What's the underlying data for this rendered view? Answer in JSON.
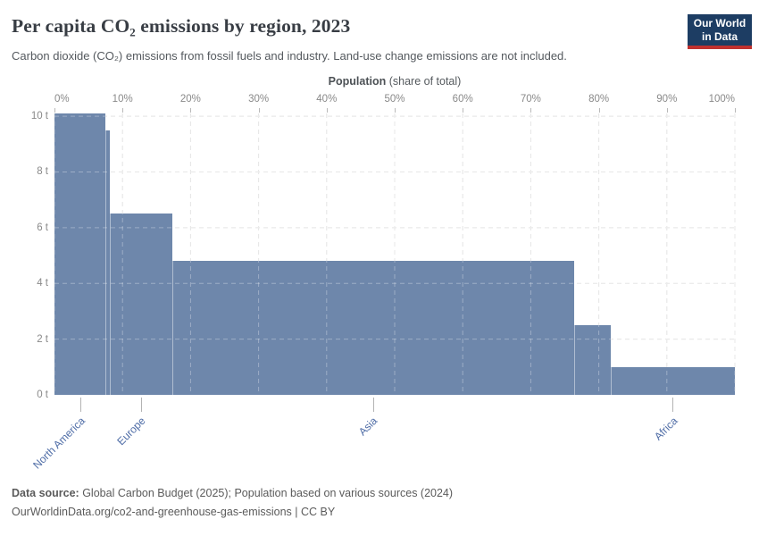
{
  "header": {
    "title": "Per capita CO₂ emissions by region, 2023",
    "subtitle": "Carbon dioxide (CO₂) emissions from fossil fuels and industry. Land-use change emissions are not included.",
    "logo": {
      "line1": "Our World",
      "line2": "in Data"
    }
  },
  "chart_data": {
    "type": "bar",
    "variant": "marimekko",
    "title": "Per capita CO₂ emissions by region, 2023",
    "x_axis": {
      "title_bold": "Population",
      "title_rest": " (share of total)",
      "ticks": [
        "0%",
        "10%",
        "20%",
        "30%",
        "40%",
        "50%",
        "60%",
        "70%",
        "80%",
        "90%",
        "100%"
      ],
      "range_pct": [
        0,
        100
      ],
      "position": "top"
    },
    "y_axis": {
      "ticks": [
        "0 t",
        "2 t",
        "4 t",
        "6 t",
        "8 t",
        "10 t"
      ],
      "tick_values": [
        0,
        2,
        4,
        6,
        8,
        10
      ],
      "unit": "tonnes CO₂ per person",
      "max": 10.1
    },
    "bars": [
      {
        "label": "North America",
        "per_capita_t": 10.1,
        "population_share_pct": 7.5
      },
      {
        "label": "",
        "per_capita_t": 9.5,
        "population_share_pct": 0.6
      },
      {
        "label": "Europe",
        "per_capita_t": 6.5,
        "population_share_pct": 9.2
      },
      {
        "label": "Asia",
        "per_capita_t": 4.8,
        "population_share_pct": 59.05
      },
      {
        "label": "",
        "per_capita_t": 2.5,
        "population_share_pct": 5.35
      },
      {
        "label": "Africa",
        "per_capita_t": 1.0,
        "population_share_pct": 18.3
      }
    ],
    "grid": true,
    "legend": "none",
    "colors": {
      "bar": "#6e87ab",
      "grid": "#dcdcdc",
      "grid_over_bars": "rgba(255,255,255,0.32)",
      "region_label": "#4e6ca6",
      "tick_label": "#898989",
      "logo_navy": "#1d3d63",
      "logo_red": "#c0312f"
    }
  },
  "footer": {
    "source_label": "Data source:",
    "source_text": " Global Carbon Budget (2025); Population based on various sources (2024)",
    "link_line": "OurWorldinData.org/co2-and-greenhouse-gas-emissions | CC BY"
  }
}
